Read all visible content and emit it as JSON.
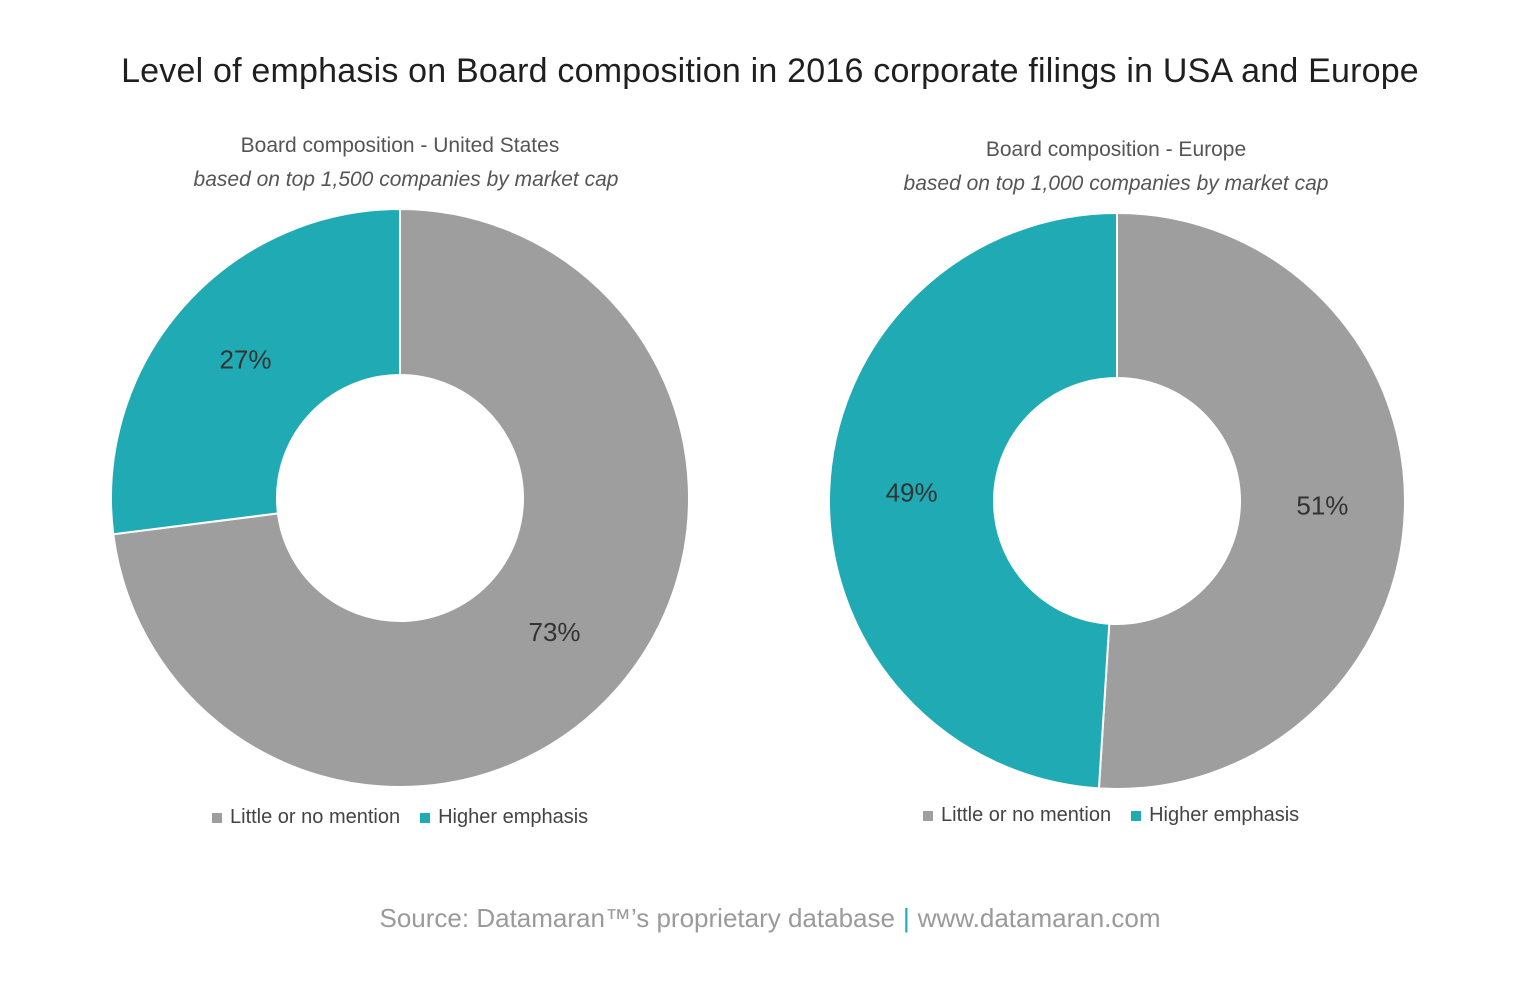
{
  "title": "Level of emphasis on Board composition in 2016 corporate filings in USA and Europe",
  "colors": {
    "little_or_no_mention": "#9e9e9e",
    "higher_emphasis": "#20aab4",
    "separator": "#ffffff",
    "source_bar": "#20aab4"
  },
  "chart_data": [
    {
      "type": "pie",
      "donut": true,
      "title": "Board composition - United States",
      "subtitle": "based on top 1,500 companies by market cap",
      "categories": [
        "Little or no mention",
        "Higher emphasis"
      ],
      "values": [
        73,
        27
      ],
      "labels": [
        "73%",
        "27%"
      ],
      "legend": [
        "Little or no mention",
        "Higher emphasis"
      ],
      "legend_position": "bottom"
    },
    {
      "type": "pie",
      "donut": true,
      "title": "Board composition - Europe",
      "subtitle": "based on top 1,000 companies by market cap",
      "categories": [
        "Little or no mention",
        "Higher emphasis"
      ],
      "values": [
        51,
        49
      ],
      "labels": [
        "51%",
        "49%"
      ],
      "legend": [
        "Little or no mention",
        "Higher emphasis"
      ],
      "legend_position": "bottom"
    }
  ],
  "footer": {
    "source": "Source: Datamaran™’s proprietary database",
    "separator": "|",
    "url": "www.datamaran.com"
  }
}
